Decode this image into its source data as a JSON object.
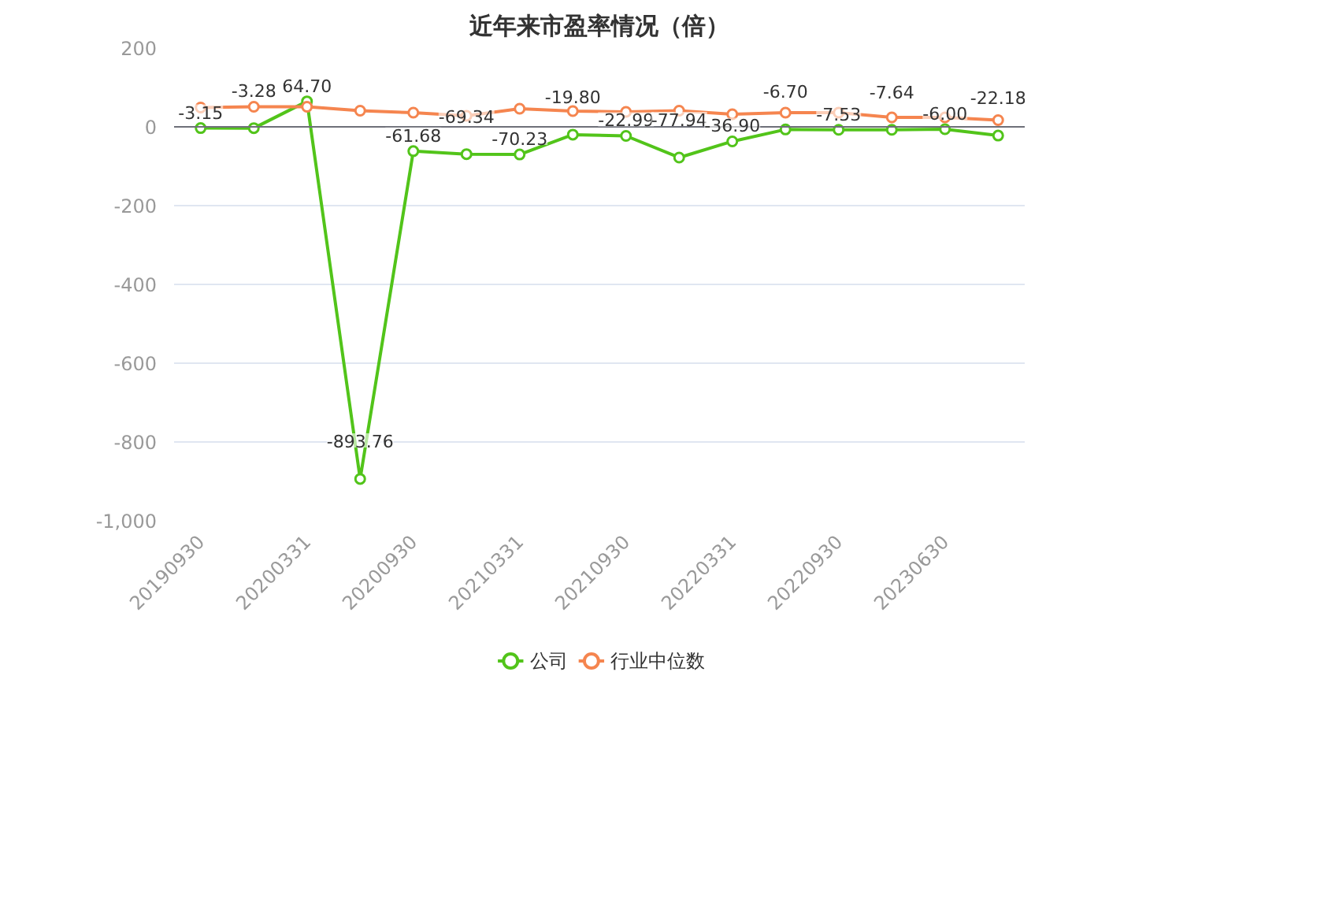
{
  "chart_data": {
    "type": "line",
    "title": "近年来市盈率情况（倍）",
    "categories": [
      "20190930",
      null,
      "20200331",
      null,
      "20200930",
      null,
      "20210331",
      null,
      "20210930",
      null,
      "20220331",
      null,
      "20220930",
      null,
      "20230630",
      null
    ],
    "series": [
      {
        "name": "公司",
        "color": "#52c41a",
        "values": [
          -3.15,
          -3.28,
          64.7,
          -893.76,
          -61.68,
          -69.34,
          -70.23,
          -19.8,
          -22.99,
          -77.94,
          -36.9,
          -6.7,
          -7.53,
          -7.64,
          -6.0,
          -22.18
        ],
        "value_labels": [
          "-3.15",
          "-3.28",
          "64.70",
          "-893.76",
          "-61.68",
          "-69.34",
          "-70.23",
          "-19.80",
          "-22.99",
          "-77.94",
          "-36.90",
          "-6.70",
          "-7.53",
          "-7.64",
          "-6.00",
          "-22.18"
        ]
      },
      {
        "name": "行业中位数",
        "color": "#f5854f",
        "values": [
          49,
          51,
          51,
          41,
          36,
          28,
          46,
          40,
          38,
          41,
          32,
          36,
          36,
          24,
          24,
          17
        ]
      }
    ],
    "ylim": [
      -1000,
      200
    ],
    "yticks": [
      {
        "value": 200,
        "label": "200"
      },
      {
        "value": 0,
        "label": "0"
      },
      {
        "value": -200,
        "label": "-200"
      },
      {
        "value": -400,
        "label": "-400"
      },
      {
        "value": -600,
        "label": "-600"
      },
      {
        "value": -800,
        "label": "-800"
      },
      {
        "value": -1000,
        "label": "-1,000"
      }
    ],
    "grid": "y",
    "legend": "bottom",
    "marker": "circle",
    "line_style": "solid"
  }
}
